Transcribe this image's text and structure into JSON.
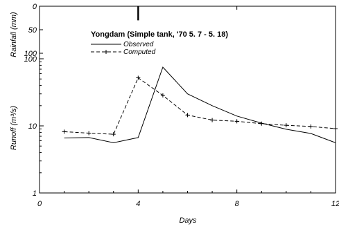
{
  "chart_data": {
    "type": "line",
    "xlabel": "Days",
    "xlim": [
      0,
      12
    ],
    "x_ticks": [
      "0",
      "4",
      "8",
      "12"
    ],
    "rainfall_panel": {
      "ylabel": "Rainfall (mm)",
      "ylim": [
        0,
        100
      ],
      "y_ticks": [
        {
          "value": 0,
          "label": "0"
        },
        {
          "value": 50,
          "label": "50"
        },
        {
          "value": 100,
          "label": "100"
        }
      ],
      "bars": [
        {
          "x": 4,
          "value": 30
        }
      ]
    },
    "runoff_panel": {
      "ylabel": "Runoff (m³/s)",
      "scale": "log",
      "ylim": [
        1,
        100
      ],
      "y_ticks": [
        {
          "value": 100,
          "label": "100"
        },
        {
          "value": 10,
          "label": "10"
        },
        {
          "value": 1,
          "label": "1"
        }
      ]
    },
    "legend": {
      "title": "Yongdam (Simple tank, '70 5. 7 - 5. 18)",
      "entries": [
        "Observed",
        "Computed"
      ]
    },
    "series": [
      {
        "name": "Observed",
        "style": "solid",
        "x": [
          1,
          2,
          3,
          4,
          5,
          6,
          7,
          8,
          9,
          10,
          11,
          12
        ],
        "y": [
          6.6,
          6.7,
          5.6,
          6.7,
          75,
          30,
          20,
          14,
          11,
          8.9,
          7.7,
          5.6
        ]
      },
      {
        "name": "Computed",
        "style": "dashed-plus",
        "x": [
          1,
          2,
          3,
          4,
          5,
          6,
          7,
          8,
          9,
          10,
          11,
          12
        ],
        "y": [
          8.2,
          7.8,
          7.5,
          52,
          28.5,
          14.5,
          12.2,
          11.7,
          10.8,
          10.2,
          9.8,
          9.1
        ]
      }
    ]
  }
}
